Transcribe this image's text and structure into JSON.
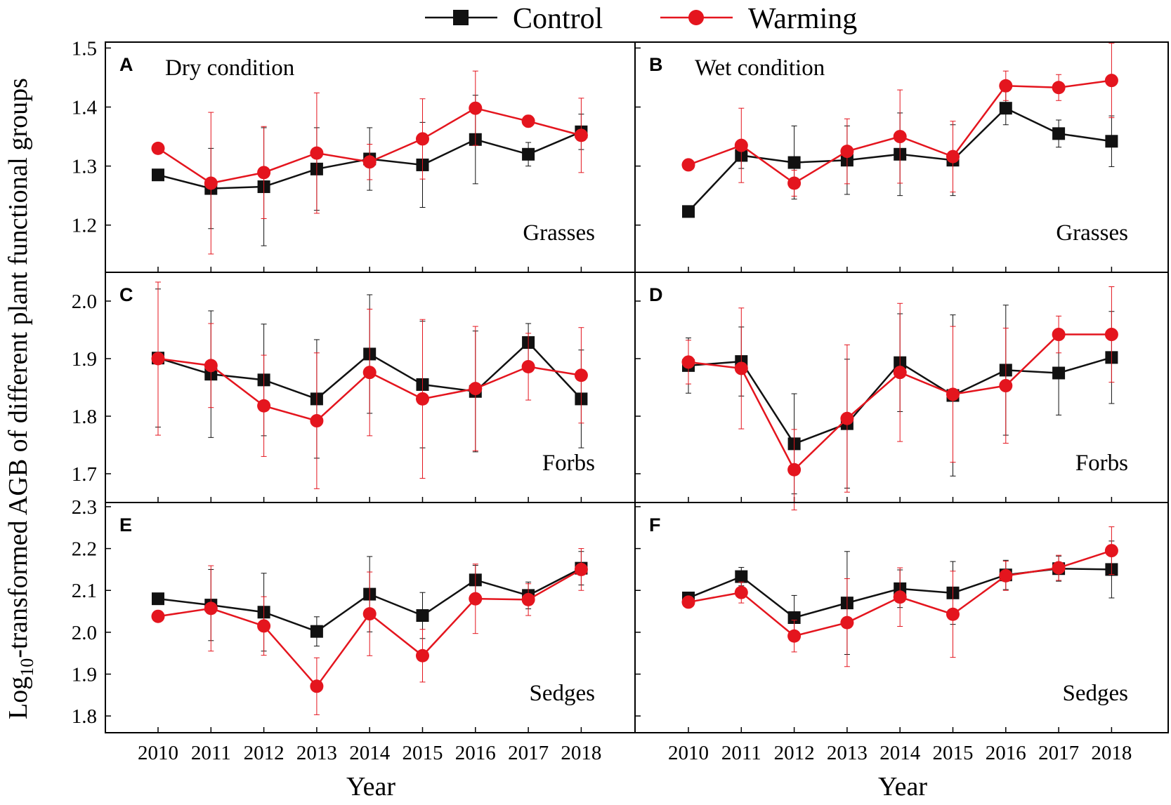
{
  "legend": {
    "control_label": "Control",
    "warming_label": "Warming",
    "control_color": "#111111",
    "warming_color": "#e4151e"
  },
  "y_axis_title": "Log10-transformed AGB of different plant functional groups",
  "y_axis_title_parts": {
    "prefix": "Log",
    "subscript": "10",
    "suffix": "-transformed AGB of different plant functional groups"
  },
  "x_axis_titles": [
    "Year",
    "Year"
  ],
  "chart_data": [
    {
      "type": "line",
      "panel": "A",
      "condition": "Dry condition",
      "group": "Grasses",
      "categories": [
        "2010",
        "2011",
        "2012",
        "2013",
        "2014",
        "2015",
        "2016",
        "2017",
        "2018"
      ],
      "ylim": [
        1.12,
        1.51
      ],
      "yticks": [
        1.2,
        1.3,
        1.4,
        1.5
      ],
      "ytick_labels": [
        "1.2",
        "1.3",
        "1.4",
        "1.5"
      ],
      "series": [
        {
          "name": "Control",
          "values": [
            1.285,
            1.262,
            1.265,
            1.295,
            1.312,
            1.302,
            1.345,
            1.32,
            1.358
          ],
          "error": [
            0.0,
            0.068,
            0.1,
            0.07,
            0.053,
            0.072,
            0.075,
            0.02,
            0.03
          ]
        },
        {
          "name": "Warming",
          "values": [
            1.33,
            1.271,
            1.289,
            1.322,
            1.307,
            1.346,
            1.398,
            1.376,
            1.352
          ],
          "error": [
            0.0,
            0.12,
            0.078,
            0.102,
            0.03,
            0.068,
            0.063,
            0.01,
            0.063
          ]
        }
      ]
    },
    {
      "type": "line",
      "panel": "B",
      "condition": "Wet condition",
      "group": "Grasses",
      "categories": [
        "2010",
        "2011",
        "2012",
        "2013",
        "2014",
        "2015",
        "2016",
        "2017",
        "2018"
      ],
      "ylim": [
        1.12,
        1.51
      ],
      "yticks": [
        1.2,
        1.3,
        1.4,
        1.5
      ],
      "ytick_labels": [
        "",
        "",
        "",
        ""
      ],
      "series": [
        {
          "name": "Control",
          "values": [
            1.223,
            1.318,
            1.306,
            1.31,
            1.32,
            1.31,
            1.398,
            1.355,
            1.342
          ],
          "error": [
            0.0,
            0.022,
            0.062,
            0.058,
            0.07,
            0.06,
            0.028,
            0.023,
            0.043
          ]
        },
        {
          "name": "Warming",
          "values": [
            1.302,
            1.335,
            1.271,
            1.325,
            1.35,
            1.316,
            1.436,
            1.433,
            1.445
          ],
          "error": [
            0.0,
            0.063,
            0.022,
            0.055,
            0.079,
            0.06,
            0.025,
            0.022,
            0.063
          ]
        }
      ]
    },
    {
      "type": "line",
      "panel": "C",
      "condition": "",
      "group": "Forbs",
      "categories": [
        "2010",
        "2011",
        "2012",
        "2013",
        "2014",
        "2015",
        "2016",
        "2017",
        "2018"
      ],
      "ylim": [
        1.65,
        2.05
      ],
      "yticks": [
        1.7,
        1.8,
        1.9,
        2.0
      ],
      "ytick_labels": [
        "1.7",
        "1.8",
        "1.9",
        "2.0"
      ],
      "series": [
        {
          "name": "Control",
          "values": [
            1.901,
            1.873,
            1.863,
            1.83,
            1.908,
            1.855,
            1.843,
            1.928,
            1.83
          ],
          "error": [
            0.12,
            0.11,
            0.097,
            0.103,
            0.103,
            0.11,
            0.105,
            0.033,
            0.085
          ]
        },
        {
          "name": "Warming",
          "values": [
            1.9,
            1.888,
            1.818,
            1.792,
            1.876,
            1.83,
            1.848,
            1.886,
            1.871
          ],
          "error": [
            0.133,
            0.073,
            0.088,
            0.118,
            0.11,
            0.138,
            0.108,
            0.058,
            0.083
          ]
        }
      ]
    },
    {
      "type": "line",
      "panel": "D",
      "condition": "",
      "group": "Forbs",
      "categories": [
        "2010",
        "2011",
        "2012",
        "2013",
        "2014",
        "2015",
        "2016",
        "2017",
        "2018"
      ],
      "ylim": [
        1.65,
        2.05
      ],
      "yticks": [
        1.7,
        1.8,
        1.9,
        2.0
      ],
      "ytick_labels": [
        "",
        "",
        "",
        ""
      ],
      "series": [
        {
          "name": "Control",
          "values": [
            1.888,
            1.895,
            1.752,
            1.787,
            1.893,
            1.836,
            1.88,
            1.875,
            1.902
          ],
          "error": [
            0.048,
            0.06,
            0.087,
            0.112,
            0.085,
            0.14,
            0.113,
            0.073,
            0.08
          ]
        },
        {
          "name": "Warming",
          "values": [
            1.894,
            1.883,
            1.707,
            1.796,
            1.876,
            1.838,
            1.853,
            1.942,
            1.942
          ],
          "error": [
            0.038,
            0.105,
            0.07,
            0.128,
            0.12,
            0.118,
            0.1,
            0.032,
            0.083
          ]
        }
      ]
    },
    {
      "type": "line",
      "panel": "E",
      "condition": "",
      "group": "Sedges",
      "categories": [
        "2010",
        "2011",
        "2012",
        "2013",
        "2014",
        "2015",
        "2016",
        "2017",
        "2018"
      ],
      "ylim": [
        1.76,
        2.31
      ],
      "yticks": [
        1.8,
        1.9,
        2.0,
        2.1,
        2.2,
        2.3
      ],
      "ytick_labels": [
        "1.8",
        "1.9",
        "2.0",
        "2.1",
        "2.2",
        "2.3"
      ],
      "series": [
        {
          "name": "Control",
          "values": [
            2.08,
            2.065,
            2.048,
            2.002,
            2.091,
            2.04,
            2.125,
            2.088,
            2.153
          ],
          "error": [
            0.0,
            0.085,
            0.093,
            0.035,
            0.09,
            0.055,
            0.035,
            0.032,
            0.04
          ]
        },
        {
          "name": "Warming",
          "values": [
            2.038,
            2.057,
            2.015,
            1.871,
            2.044,
            1.944,
            2.08,
            2.078,
            2.15
          ],
          "error": [
            0.0,
            0.102,
            0.07,
            0.068,
            0.1,
            0.063,
            0.083,
            0.038,
            0.05
          ]
        }
      ]
    },
    {
      "type": "line",
      "panel": "F",
      "condition": "",
      "group": "Sedges",
      "categories": [
        "2010",
        "2011",
        "2012",
        "2013",
        "2014",
        "2015",
        "2016",
        "2017",
        "2018"
      ],
      "ylim": [
        1.76,
        2.31
      ],
      "yticks": [
        1.8,
        1.9,
        2.0,
        2.1,
        2.2,
        2.3
      ],
      "ytick_labels": [
        "",
        "",
        "",
        "",
        "",
        ""
      ],
      "series": [
        {
          "name": "Control",
          "values": [
            2.082,
            2.133,
            2.035,
            2.07,
            2.104,
            2.094,
            2.137,
            2.152,
            2.15
          ],
          "error": [
            0.0,
            0.022,
            0.053,
            0.123,
            0.045,
            0.075,
            0.035,
            0.03,
            0.068
          ]
        },
        {
          "name": "Warming",
          "values": [
            2.072,
            2.095,
            1.991,
            2.023,
            2.084,
            2.043,
            2.135,
            2.154,
            2.195
          ],
          "error": [
            0.0,
            0.025,
            0.038,
            0.105,
            0.07,
            0.103,
            0.035,
            0.03,
            0.057
          ]
        }
      ]
    }
  ]
}
